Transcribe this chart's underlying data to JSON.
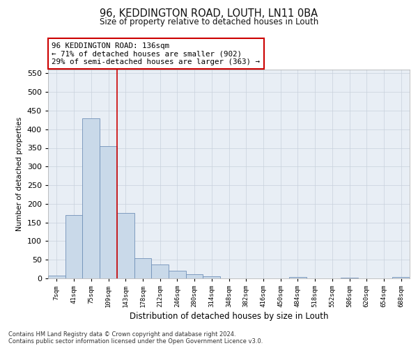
{
  "title1": "96, KEDDINGTON ROAD, LOUTH, LN11 0BA",
  "title2": "Size of property relative to detached houses in Louth",
  "xlabel": "Distribution of detached houses by size in Louth",
  "ylabel": "Number of detached properties",
  "bar_values": [
    8,
    170,
    430,
    355,
    175,
    55,
    38,
    20,
    11,
    5,
    0,
    0,
    0,
    0,
    3,
    0,
    0,
    2,
    0,
    0,
    3
  ],
  "bar_labels": [
    "7sqm",
    "41sqm",
    "75sqm",
    "109sqm",
    "143sqm",
    "178sqm",
    "212sqm",
    "246sqm",
    "280sqm",
    "314sqm",
    "348sqm",
    "382sqm",
    "416sqm",
    "450sqm",
    "484sqm",
    "518sqm",
    "552sqm",
    "586sqm",
    "620sqm",
    "654sqm",
    "688sqm"
  ],
  "bar_color": "#c9d9e9",
  "bar_edge_color": "#7090b8",
  "vline_color": "#cc0000",
  "vline_pos": 3.5,
  "ylim": [
    0,
    560
  ],
  "yticks": [
    0,
    50,
    100,
    150,
    200,
    250,
    300,
    350,
    400,
    450,
    500,
    550
  ],
  "annotation_text": "96 KEDDINGTON ROAD: 136sqm\n← 71% of detached houses are smaller (902)\n29% of semi-detached houses are larger (363) →",
  "annotation_box_facecolor": "#ffffff",
  "annotation_box_edgecolor": "#cc0000",
  "footnote": "Contains HM Land Registry data © Crown copyright and database right 2024.\nContains public sector information licensed under the Open Government Licence v3.0.",
  "background_color": "#ffffff",
  "plot_bg_color": "#e8eef5",
  "grid_color": "#c8d0dc"
}
